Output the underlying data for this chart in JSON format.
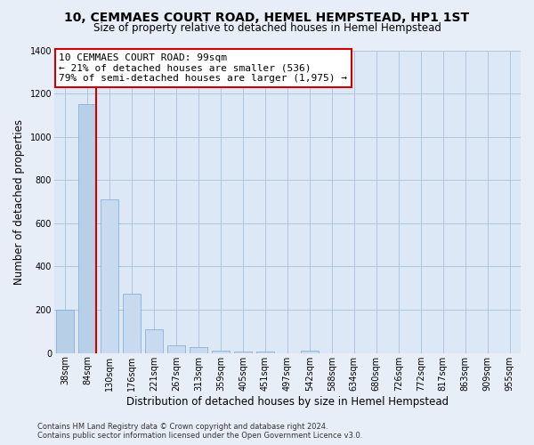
{
  "title": "10, CEMMAES COURT ROAD, HEMEL HEMPSTEAD, HP1 1ST",
  "subtitle": "Size of property relative to detached houses in Hemel Hempstead",
  "xlabel": "Distribution of detached houses by size in Hemel Hempstead",
  "ylabel": "Number of detached properties",
  "bar_labels": [
    "38sqm",
    "84sqm",
    "130sqm",
    "176sqm",
    "221sqm",
    "267sqm",
    "313sqm",
    "359sqm",
    "405sqm",
    "451sqm",
    "497sqm",
    "542sqm",
    "588sqm",
    "634sqm",
    "680sqm",
    "726sqm",
    "772sqm",
    "817sqm",
    "863sqm",
    "909sqm",
    "955sqm"
  ],
  "bar_values": [
    200,
    1150,
    710,
    275,
    110,
    35,
    28,
    10,
    5,
    8,
    0,
    12,
    0,
    0,
    0,
    0,
    0,
    0,
    0,
    0,
    0
  ],
  "bar_color_left": "#b8cfe8",
  "bar_color_right": "#c8daf0",
  "bar_edge_color": "#7aa8d4",
  "marker_line_color": "#cc0000",
  "annotation_title": "10 CEMMAES COURT ROAD: 99sqm",
  "annotation_line1": "← 21% of detached houses are smaller (536)",
  "annotation_line2": "79% of semi-detached houses are larger (1,975) →",
  "annotation_box_color": "#ffffff",
  "annotation_box_edge_color": "#cc0000",
  "ylim": [
    0,
    1400
  ],
  "yticks": [
    0,
    200,
    400,
    600,
    800,
    1000,
    1200,
    1400
  ],
  "footer_line1": "Contains HM Land Registry data © Crown copyright and database right 2024.",
  "footer_line2": "Contains public sector information licensed under the Open Government Licence v3.0.",
  "bg_color": "#e8eef8",
  "plot_bg_color": "#dce8f5",
  "grid_color": "#b0c4de",
  "title_fontsize": 10,
  "subtitle_fontsize": 8.5,
  "xlabel_fontsize": 8.5,
  "ylabel_fontsize": 8.5,
  "tick_fontsize": 7,
  "footer_fontsize": 6.0,
  "annot_fontsize": 8.0
}
